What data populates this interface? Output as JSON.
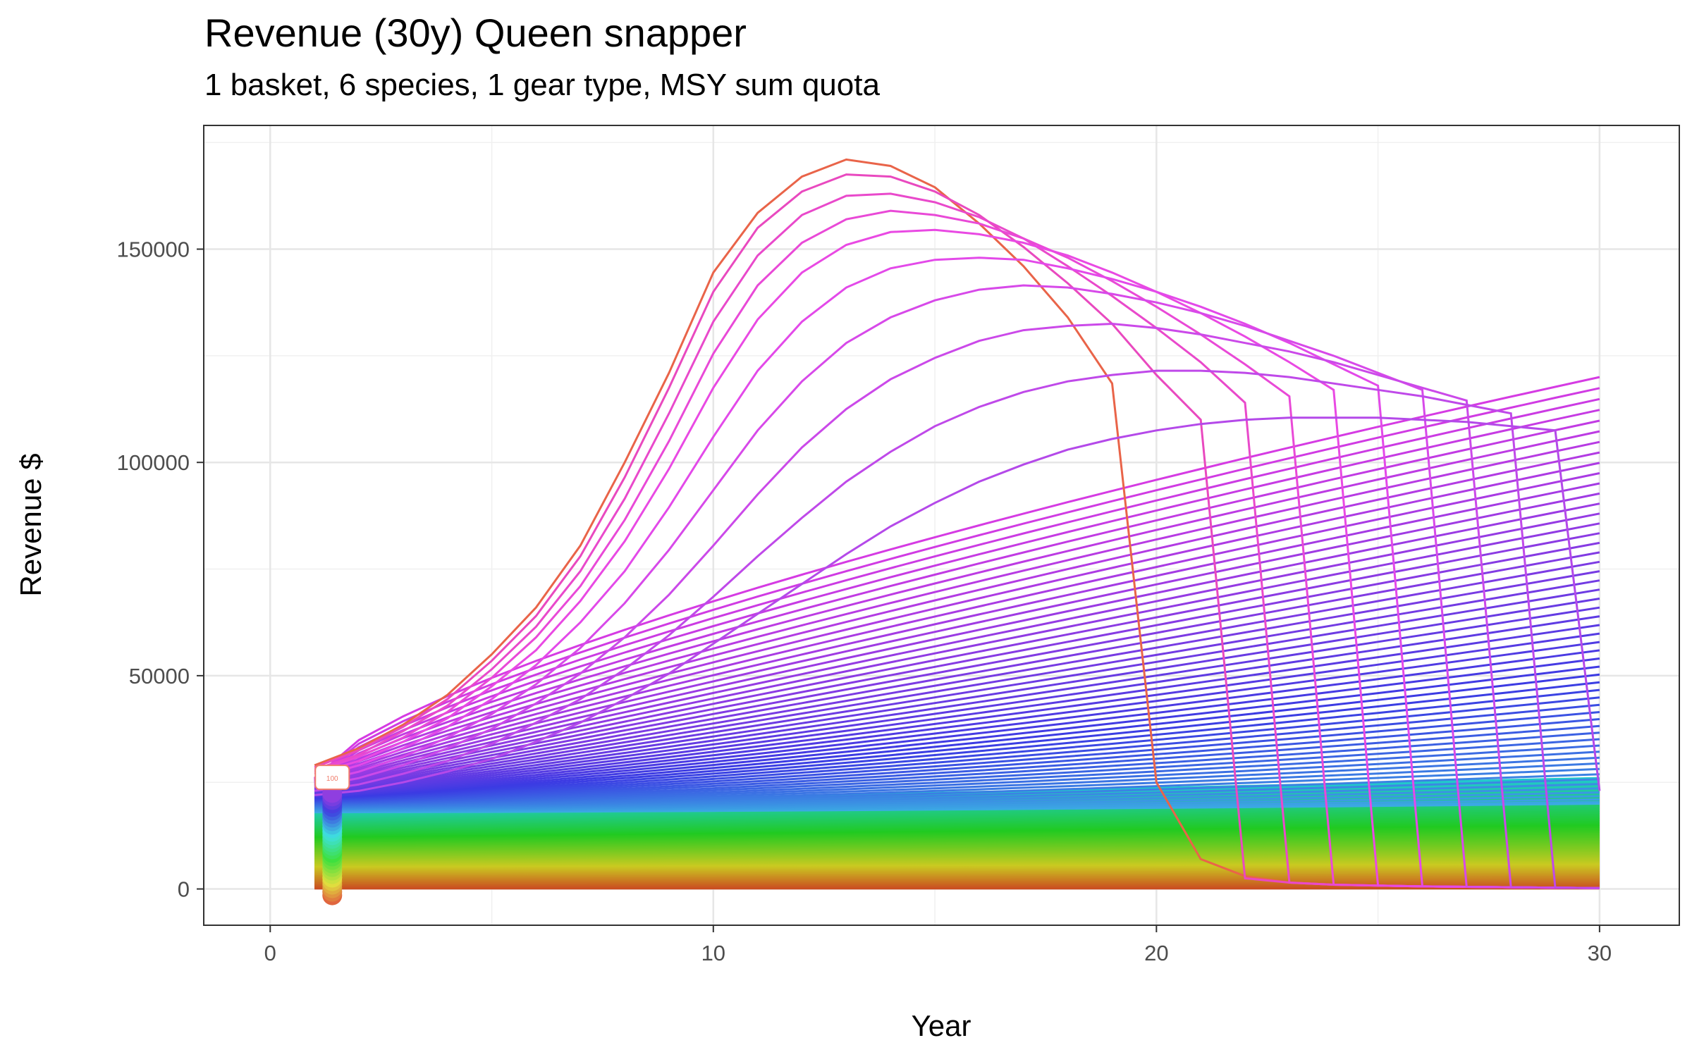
{
  "chart_data": {
    "type": "line",
    "title": "Revenue (30y) Queen snapper",
    "subtitle": "1 basket, 6 species, 1 gear type, MSY sum quota",
    "xlabel": "Year",
    "ylabel": "Revenue $",
    "xlim": [
      -1.5,
      31.8
    ],
    "ylim": [
      -8500,
      179000
    ],
    "x_ticks": [
      0,
      10,
      20,
      30
    ],
    "y_ticks": [
      0,
      50000,
      100000,
      150000
    ],
    "x_tick_labels": [
      "0",
      "10",
      "20",
      "30"
    ],
    "y_tick_labels": [
      "0",
      "50000",
      "100000",
      "150000"
    ],
    "grid": true,
    "legend": "none",
    "start_label": "100",
    "x": [
      1,
      2,
      3,
      4,
      5,
      6,
      7,
      8,
      9,
      10,
      11,
      12,
      13,
      14,
      15,
      16,
      17,
      18,
      19,
      20,
      21,
      22,
      23,
      24,
      25,
      26,
      27,
      28,
      29,
      30
    ],
    "series_note": "Approximately 100 effort-scenario lines; colour runs orange-red -> yellow -> green -> blue -> purple -> pink",
    "highlighted_series": [
      {
        "values": [
          29000,
          33000,
          38500,
          45500,
          55000,
          66000,
          80500,
          100000,
          121000,
          144500,
          158500,
          167000,
          171000,
          169500,
          164500,
          156000,
          146000,
          134000,
          118500,
          25000,
          7000,
          3000,
          1500,
          1000,
          800,
          600,
          500,
          400,
          300,
          200
        ]
      },
      {
        "values": [
          28500,
          32500,
          38000,
          44500,
          53500,
          64000,
          78000,
          96500,
          117500,
          140000,
          155000,
          163500,
          167500,
          167000,
          163500,
          158000,
          150500,
          142000,
          132500,
          120500,
          110000,
          2500,
          1500,
          1000,
          800,
          600,
          500,
          400,
          300,
          200
        ]
      },
      {
        "values": [
          28000,
          31500,
          37000,
          43000,
          51500,
          61500,
          74500,
          91500,
          111500,
          133000,
          148500,
          158000,
          162500,
          163000,
          161000,
          157500,
          152500,
          146000,
          139000,
          131500,
          123500,
          114000,
          1500,
          1000,
          800,
          600,
          500,
          400,
          300,
          200
        ]
      },
      {
        "values": [
          27500,
          31000,
          35500,
          41500,
          49500,
          59000,
          71000,
          86500,
          105000,
          125500,
          141500,
          151500,
          157000,
          159000,
          158000,
          156000,
          152500,
          148000,
          142500,
          136500,
          130000,
          123000,
          115500,
          1000,
          800,
          600,
          500,
          400,
          300,
          200
        ]
      },
      {
        "values": [
          27000,
          30000,
          34500,
          40000,
          47500,
          56000,
          67500,
          81500,
          98500,
          117500,
          133500,
          144500,
          151000,
          154000,
          154500,
          153500,
          151500,
          148500,
          144500,
          140000,
          135000,
          129500,
          123500,
          117000,
          800,
          600,
          500,
          400,
          300,
          200
        ]
      },
      {
        "values": [
          26000,
          29000,
          33000,
          38000,
          44500,
          52500,
          62500,
          74500,
          89500,
          106000,
          121500,
          133000,
          141000,
          145500,
          147500,
          148000,
          147500,
          145500,
          143000,
          140000,
          136500,
          132500,
          128000,
          123000,
          118000,
          600,
          500,
          400,
          300,
          200
        ]
      },
      {
        "values": [
          25000,
          27500,
          31000,
          35500,
          41000,
          48000,
          56500,
          67000,
          79500,
          93500,
          107500,
          119000,
          128000,
          134000,
          138000,
          140500,
          141500,
          141000,
          139500,
          137500,
          135000,
          132000,
          128500,
          125000,
          121000,
          117000,
          500,
          400,
          300,
          200
        ]
      },
      {
        "values": [
          24000,
          26000,
          29000,
          33000,
          37500,
          43500,
          50500,
          59000,
          69000,
          80500,
          92500,
          103500,
          112500,
          119500,
          124500,
          128500,
          131000,
          132000,
          132500,
          131500,
          130000,
          128000,
          126000,
          123500,
          120500,
          117500,
          114500,
          400,
          300,
          200
        ]
      },
      {
        "values": [
          23000,
          24500,
          27000,
          30000,
          34000,
          39000,
          44500,
          51500,
          59500,
          68500,
          78000,
          87000,
          95500,
          102500,
          108500,
          113000,
          116500,
          119000,
          120500,
          121500,
          121500,
          121000,
          120000,
          118500,
          117000,
          115500,
          113500,
          111500,
          300,
          200
        ]
      },
      {
        "values": [
          22000,
          23000,
          25000,
          27500,
          30500,
          34500,
          39000,
          44500,
          50500,
          57500,
          64500,
          71500,
          78500,
          85000,
          90500,
          95500,
          99500,
          103000,
          105500,
          107500,
          109000,
          110000,
          110500,
          110500,
          110500,
          110000,
          109500,
          108500,
          107500,
          23000
        ]
      }
    ]
  }
}
